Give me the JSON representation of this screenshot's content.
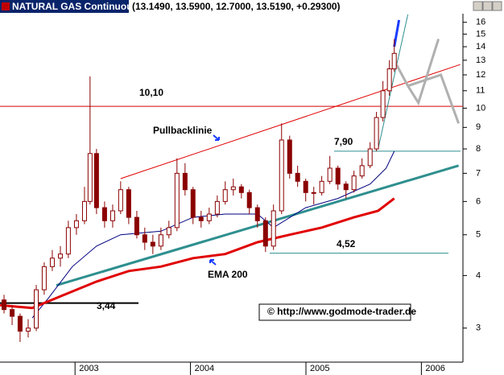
{
  "chart_data": {
    "type": "candlestick",
    "title": "NATURAL GAS Continuous",
    "quote": "(13.1490, 13.5900, 12.7000, 13.5190, +0.29300)",
    "log_scale": true,
    "xlim": [
      2002.35,
      2006.36
    ],
    "xticks": [
      2003,
      2004,
      2005,
      2006
    ],
    "ylim": [
      2.49,
      16.7
    ],
    "yticks": [
      3,
      4,
      5,
      6,
      7,
      8,
      9,
      10,
      11,
      12,
      13,
      14,
      15,
      16
    ],
    "up_color": "#ffffff",
    "down_color": "#8b0000",
    "x": [
      2002.385,
      2002.455,
      2002.524,
      2002.594,
      2002.664,
      2002.733,
      2002.803,
      2002.873,
      2002.942,
      2003.012,
      2003.082,
      2003.13,
      2003.186,
      2003.256,
      2003.326,
      2003.395,
      2003.465,
      2003.535,
      2003.604,
      2003.674,
      2003.744,
      2003.813,
      2003.883,
      2003.953,
      2004.022,
      2004.092,
      2004.162,
      2004.232,
      2004.301,
      2004.371,
      2004.441,
      2004.51,
      2004.58,
      2004.65,
      2004.719,
      2004.789,
      2004.859,
      2004.928,
      2004.998,
      2005.068,
      2005.137,
      2005.207,
      2005.277,
      2005.347,
      2005.416,
      2005.486,
      2005.556,
      2005.611,
      2005.667,
      2005.723,
      2005.765
    ],
    "open": [
      3.5,
      3.32,
      3.2,
      2.95,
      3.0,
      3.7,
      4.2,
      4.4,
      4.5,
      5.2,
      5.4,
      6.0,
      7.8,
      5.8,
      5.4,
      5.7,
      6.4,
      5.5,
      5.0,
      4.8,
      4.7,
      5.0,
      5.2,
      7.0,
      6.4,
      5.5,
      5.4,
      5.6,
      6.0,
      6.4,
      6.5,
      6.3,
      5.8,
      5.4,
      4.7,
      5.7,
      8.4,
      7.0,
      6.7,
      6.3,
      6.3,
      6.7,
      7.2,
      6.6,
      6.4,
      6.9,
      7.3,
      8.0,
      9.5,
      11.0,
      12.4
    ],
    "high": [
      3.6,
      3.4,
      3.25,
      3.15,
      3.8,
      4.3,
      4.6,
      4.7,
      5.4,
      5.6,
      6.5,
      11.9,
      8.0,
      6.0,
      5.9,
      6.7,
      6.5,
      5.7,
      5.2,
      5.0,
      5.2,
      5.4,
      7.6,
      7.4,
      6.5,
      5.7,
      5.8,
      6.2,
      6.7,
      6.8,
      6.6,
      6.4,
      5.9,
      5.5,
      5.9,
      9.2,
      8.6,
      7.3,
      6.8,
      6.5,
      6.9,
      7.7,
      7.3,
      6.7,
      7.1,
      7.6,
      8.3,
      9.8,
      11.6,
      13.0,
      14.6
    ],
    "low": [
      3.25,
      3.05,
      2.78,
      2.85,
      2.95,
      3.6,
      4.1,
      4.2,
      4.4,
      5.0,
      5.3,
      5.9,
      5.6,
      5.2,
      5.2,
      5.6,
      5.3,
      4.9,
      4.6,
      4.5,
      4.6,
      4.9,
      5.1,
      6.2,
      5.3,
      5.2,
      5.3,
      5.5,
      5.9,
      6.2,
      6.1,
      5.6,
      5.2,
      4.55,
      4.6,
      5.6,
      6.8,
      6.5,
      6.0,
      5.9,
      6.2,
      6.6,
      6.4,
      6.1,
      6.3,
      6.8,
      7.2,
      7.9,
      9.3,
      10.7,
      12.2
    ],
    "close": [
      3.32,
      3.2,
      2.95,
      3.0,
      3.7,
      4.2,
      4.4,
      4.5,
      5.2,
      5.4,
      6.0,
      7.8,
      5.8,
      5.4,
      5.7,
      6.4,
      5.5,
      5.0,
      4.8,
      4.7,
      5.0,
      5.2,
      7.0,
      6.4,
      5.5,
      5.4,
      5.6,
      6.0,
      6.4,
      6.5,
      6.3,
      5.8,
      5.4,
      4.7,
      5.7,
      8.4,
      7.0,
      6.7,
      6.3,
      6.3,
      6.7,
      7.2,
      6.6,
      6.4,
      6.9,
      7.3,
      8.0,
      9.5,
      11.0,
      12.4,
      13.5
    ],
    "averages": [
      {
        "color": "#000080",
        "width": 1,
        "x": [
          2002.629,
          2002.768,
          2002.977,
          2003.186,
          2003.395,
          2003.744,
          2004.022,
          2004.301,
          2004.58,
          2004.719,
          2004.998,
          2005.277,
          2005.556,
          2005.695,
          2005.765
        ],
        "values": [
          3.17,
          3.53,
          4.2,
          4.7,
          5.0,
          5.1,
          5.5,
          5.6,
          5.6,
          5.2,
          5.8,
          6.1,
          6.6,
          7.2,
          7.9
        ]
      },
      {
        "color": "#e00000",
        "width": 3,
        "x": [
          2002.35,
          2002.629,
          2002.907,
          2003.186,
          2003.465,
          2003.744,
          2004.022,
          2004.301,
          2004.58,
          2004.859,
          2005.137,
          2005.416,
          2005.625,
          2005.765
        ],
        "values": [
          3.4,
          3.35,
          3.6,
          3.87,
          4.1,
          4.2,
          4.4,
          4.5,
          4.8,
          5.0,
          5.2,
          5.5,
          5.7,
          6.1
        ]
      }
    ],
    "trendlines": [
      {
        "color": "#e00000",
        "width": 1,
        "x": [
          2003.395,
          2006.336
        ],
        "values": [
          6.8,
          12.7
        ]
      },
      {
        "color": "#2f8f8f",
        "width": 3,
        "x": [
          2002.838,
          2006.322
        ],
        "values": [
          3.79,
          7.3
        ]
      },
      {
        "color": "#2f8f8f",
        "width": 1,
        "x": [
          2005.625,
          2005.883
        ],
        "values": [
          8.0,
          16.7
        ]
      },
      {
        "color": "#1a3cff",
        "width": 3,
        "x": [
          2005.765,
          2005.806
        ],
        "values": [
          14.0,
          16.2
        ]
      }
    ],
    "projections": [
      {
        "color": "#b0b0b0",
        "width": 3,
        "x": [
          2005.778,
          2005.883,
          2005.974,
          2006.148
        ],
        "values": [
          12.8,
          11.3,
          10.3,
          14.6
        ]
      },
      {
        "color": "#b0b0b0",
        "width": 3,
        "x": [
          2005.883,
          2006.169,
          2006.322
        ],
        "values": [
          11.3,
          12.0,
          9.2
        ]
      }
    ],
    "levels": [
      {
        "value": 10.1,
        "label": "10,10",
        "color": "#d00000"
      },
      {
        "value": 7.9,
        "label": "7,90",
        "color": "#2f8f8f"
      },
      {
        "value": 4.52,
        "label": "4,52",
        "color": "#2f8f8f"
      },
      {
        "value": 3.44,
        "label": "3,44",
        "color": "#000000"
      }
    ],
    "annotations": [
      "Pullbacklinie",
      "EMA 200",
      "© http://www.godmode-trader.de"
    ]
  }
}
